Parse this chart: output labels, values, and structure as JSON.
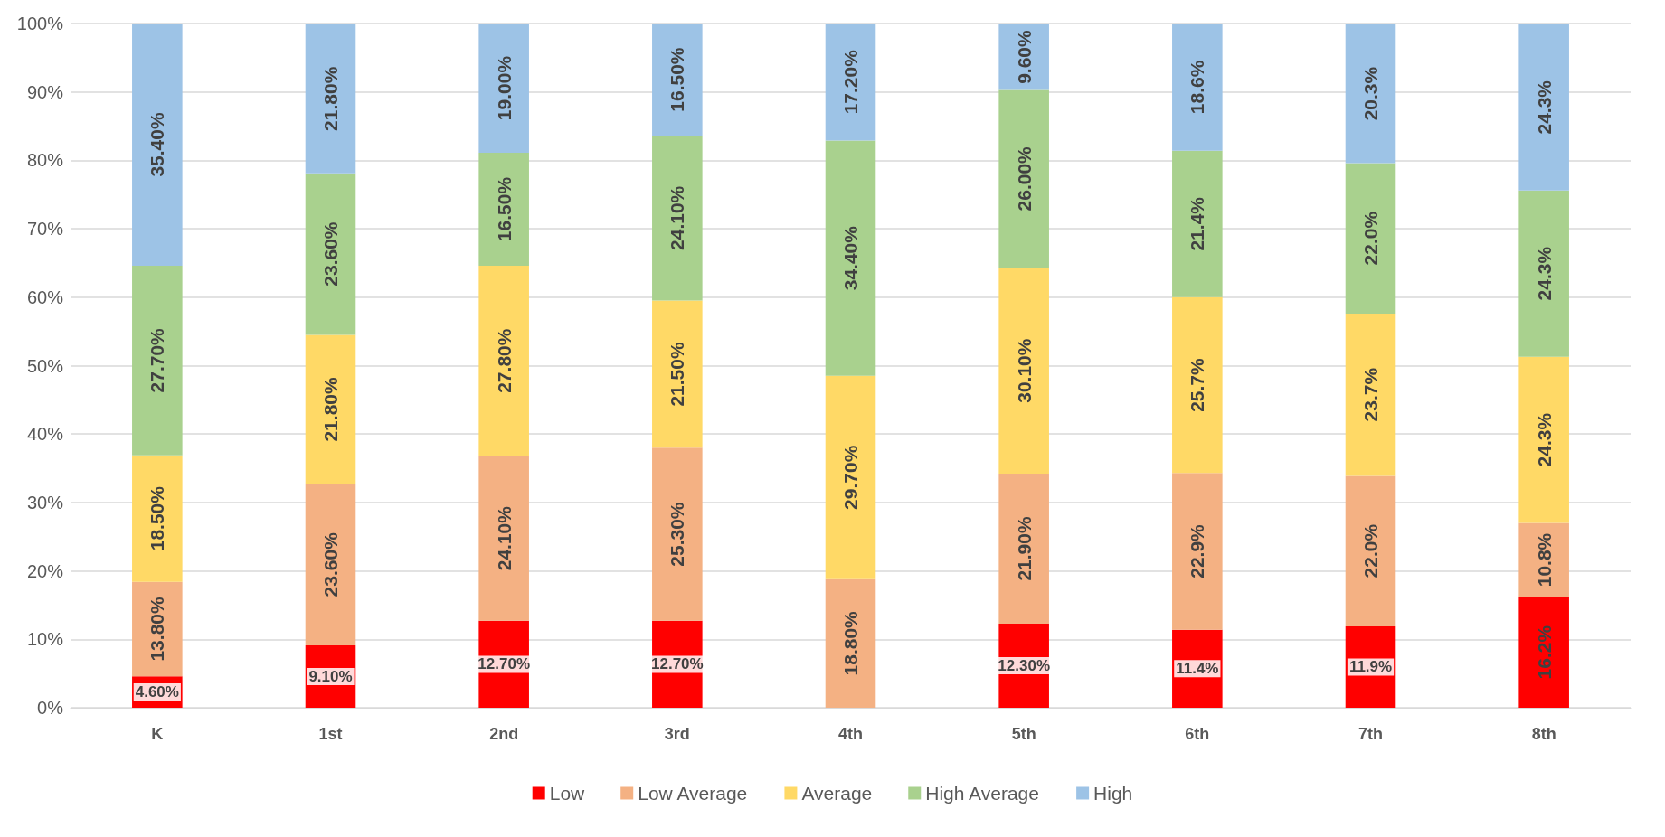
{
  "chart_data": {
    "type": "bar",
    "stacked": true,
    "categories": [
      "K",
      "1st",
      "2nd",
      "3rd",
      "4th",
      "5th",
      "6th",
      "7th",
      "8th"
    ],
    "series": [
      {
        "name": "Low",
        "color": "#ff0000",
        "values": [
          4.6,
          9.1,
          12.7,
          12.7,
          0,
          12.3,
          11.4,
          11.9,
          16.2
        ],
        "value_labels": [
          "4.60%",
          "9.10%",
          "12.70%",
          "12.70%",
          null,
          "12.30%",
          "11.4%",
          "11.9%",
          "16.2%"
        ]
      },
      {
        "name": "Low Average",
        "color": "#f4b183",
        "values": [
          13.8,
          23.6,
          24.1,
          25.3,
          18.8,
          21.9,
          22.9,
          22.0,
          10.8
        ],
        "value_labels": [
          "13.80%",
          "23.60%",
          "24.10%",
          "25.30%",
          "18.80%",
          "21.90%",
          "22.9%",
          "22.0%",
          "10.8%"
        ]
      },
      {
        "name": "Average",
        "color": "#ffd966",
        "values": [
          18.5,
          21.8,
          27.8,
          21.5,
          29.7,
          30.1,
          25.7,
          23.7,
          24.3
        ],
        "value_labels": [
          "18.50%",
          "21.80%",
          "27.80%",
          "21.50%",
          "29.70%",
          "30.10%",
          "25.7%",
          "23.7%",
          "24.3%"
        ]
      },
      {
        "name": "High Average",
        "color": "#a9d18e",
        "values": [
          27.7,
          23.6,
          16.5,
          24.1,
          34.4,
          26.0,
          21.4,
          22.0,
          24.3
        ],
        "value_labels": [
          "27.70%",
          "23.60%",
          "16.50%",
          "24.10%",
          "34.40%",
          "26.00%",
          "21.4%",
          "22.0%",
          "24.3%"
        ]
      },
      {
        "name": "High",
        "color": "#9dc3e6",
        "values": [
          35.4,
          21.8,
          19.0,
          16.5,
          17.2,
          9.6,
          18.6,
          20.3,
          24.3
        ],
        "value_labels": [
          "35.40%",
          "21.80%",
          "19.00%",
          "16.50%",
          "17.20%",
          "9.60%",
          "18.6%",
          "20.3%",
          "24.3%"
        ]
      }
    ],
    "ylim": [
      0,
      100
    ],
    "yticks": [
      {
        "value": 0,
        "label": "0%"
      },
      {
        "value": 10,
        "label": "10%"
      },
      {
        "value": 20,
        "label": "20%"
      },
      {
        "value": 30,
        "label": "30%"
      },
      {
        "value": 40,
        "label": "40%"
      },
      {
        "value": 50,
        "label": "50%"
      },
      {
        "value": 60,
        "label": "60%"
      },
      {
        "value": 70,
        "label": "70%"
      },
      {
        "value": 80,
        "label": "80%"
      },
      {
        "value": 90,
        "label": "90%"
      },
      {
        "value": 100,
        "label": "100%"
      }
    ],
    "grid": "y",
    "legend": "bottom"
  }
}
